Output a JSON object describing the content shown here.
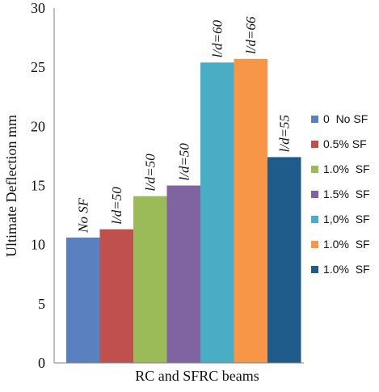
{
  "chart_data": {
    "type": "bar",
    "categories": [
      "0  No SF",
      "0.5% SF",
      "1.0%  SF",
      "1.5%  SF",
      "1,0%  SF",
      "1.0%  SF",
      "1.0%  SF"
    ],
    "values": [
      10.6,
      11.3,
      14.1,
      15.0,
      25.4,
      25.7,
      17.4
    ],
    "colors": [
      "#5A80BF",
      "#C0504D",
      "#9BBB59",
      "#8064A2",
      "#4BACC6",
      "#F79646",
      "#1F5C8C"
    ],
    "data_labels": [
      "No SF",
      "l/d=50",
      "l/d=50",
      "l/d=50",
      "l/d=60",
      "l/d=66",
      "l/d=55"
    ],
    "ylim": [
      0,
      30
    ],
    "yticks": [
      0,
      5,
      10,
      15,
      20,
      25,
      30
    ],
    "xlabel": "RC and SFRC beams",
    "ylabel": "Ultimate Deflection mm",
    "title": "",
    "grid": false,
    "legend_position": "right"
  }
}
